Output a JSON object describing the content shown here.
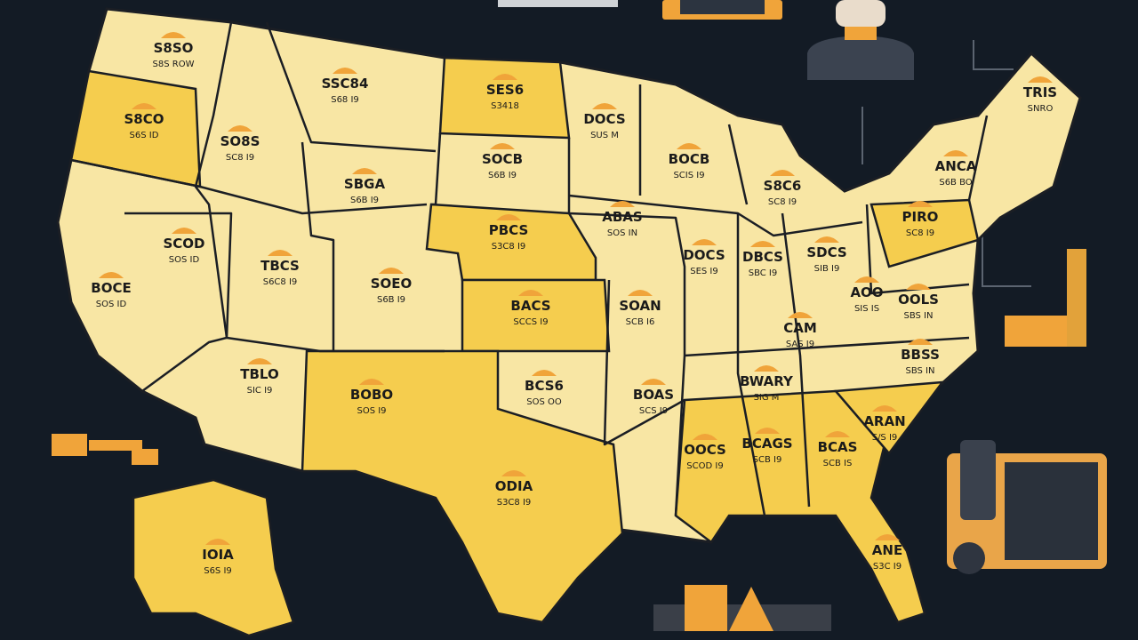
{
  "states": [
    {
      "label": "S8SO",
      "sub": "S8S ROW"
    },
    {
      "label": "S8CO",
      "sub": "S6S ID"
    },
    {
      "label": "SO8S",
      "sub": "SC8 I9"
    },
    {
      "label": "SSC84",
      "sub": "S68 I9"
    },
    {
      "label": "SES6",
      "sub": "S3418"
    },
    {
      "label": "DOCS",
      "sub": "SUS M"
    },
    {
      "label": "SOCB",
      "sub": "S6B I9"
    },
    {
      "label": "SBGA",
      "sub": "S6B I9"
    },
    {
      "label": "BOCB",
      "sub": "SCIS I9"
    },
    {
      "label": "S8C6",
      "sub": "SC8 I9"
    },
    {
      "label": "ANCA",
      "sub": "S6B BO"
    },
    {
      "label": "TRIS",
      "sub": "SNRO"
    },
    {
      "label": "BOCE",
      "sub": "SOS ID"
    },
    {
      "label": "SCOD",
      "sub": "SOS ID"
    },
    {
      "label": "TBCS",
      "sub": "S6C8 I9"
    },
    {
      "label": "SOEO",
      "sub": "S6B I9"
    },
    {
      "label": "PBCS",
      "sub": "S3C8 I9"
    },
    {
      "label": "ABAS",
      "sub": "SOS IN"
    },
    {
      "label": "DOCS",
      "sub": "SES I9"
    },
    {
      "label": "DBCS",
      "sub": "SBC I9"
    },
    {
      "label": "SDCS",
      "sub": "SIB I9"
    },
    {
      "label": "PIRO",
      "sub": "SC8 I9"
    },
    {
      "label": "BACS",
      "sub": "SCCS I9"
    },
    {
      "label": "SOAN",
      "sub": "SCB I6"
    },
    {
      "label": "AOO",
      "sub": "SIS IS"
    },
    {
      "label": "OOLS",
      "sub": "SBS IN"
    },
    {
      "label": "CAM",
      "sub": "SAS I9"
    },
    {
      "label": "BWARY",
      "sub": "SIG M"
    },
    {
      "label": "BBSS",
      "sub": "SBS IN"
    },
    {
      "label": "TBLO",
      "sub": "SIC I9"
    },
    {
      "label": "BOBO",
      "sub": "SOS I9"
    },
    {
      "label": "BCS6",
      "sub": "SOS OO"
    },
    {
      "label": "BOAS",
      "sub": "SCS I9"
    },
    {
      "label": "ARAN",
      "sub": "S/S I9"
    },
    {
      "label": "OOCS",
      "sub": "SCOD I9"
    },
    {
      "label": "BCAGS",
      "sub": "SCB I9"
    },
    {
      "label": "BCAS",
      "sub": "SCB IS"
    },
    {
      "label": "ODIA",
      "sub": "S3C8 I9"
    },
    {
      "label": "ANE",
      "sub": "S3C I9"
    },
    {
      "label": "IOIA",
      "sub": "S6S I9"
    }
  ]
}
